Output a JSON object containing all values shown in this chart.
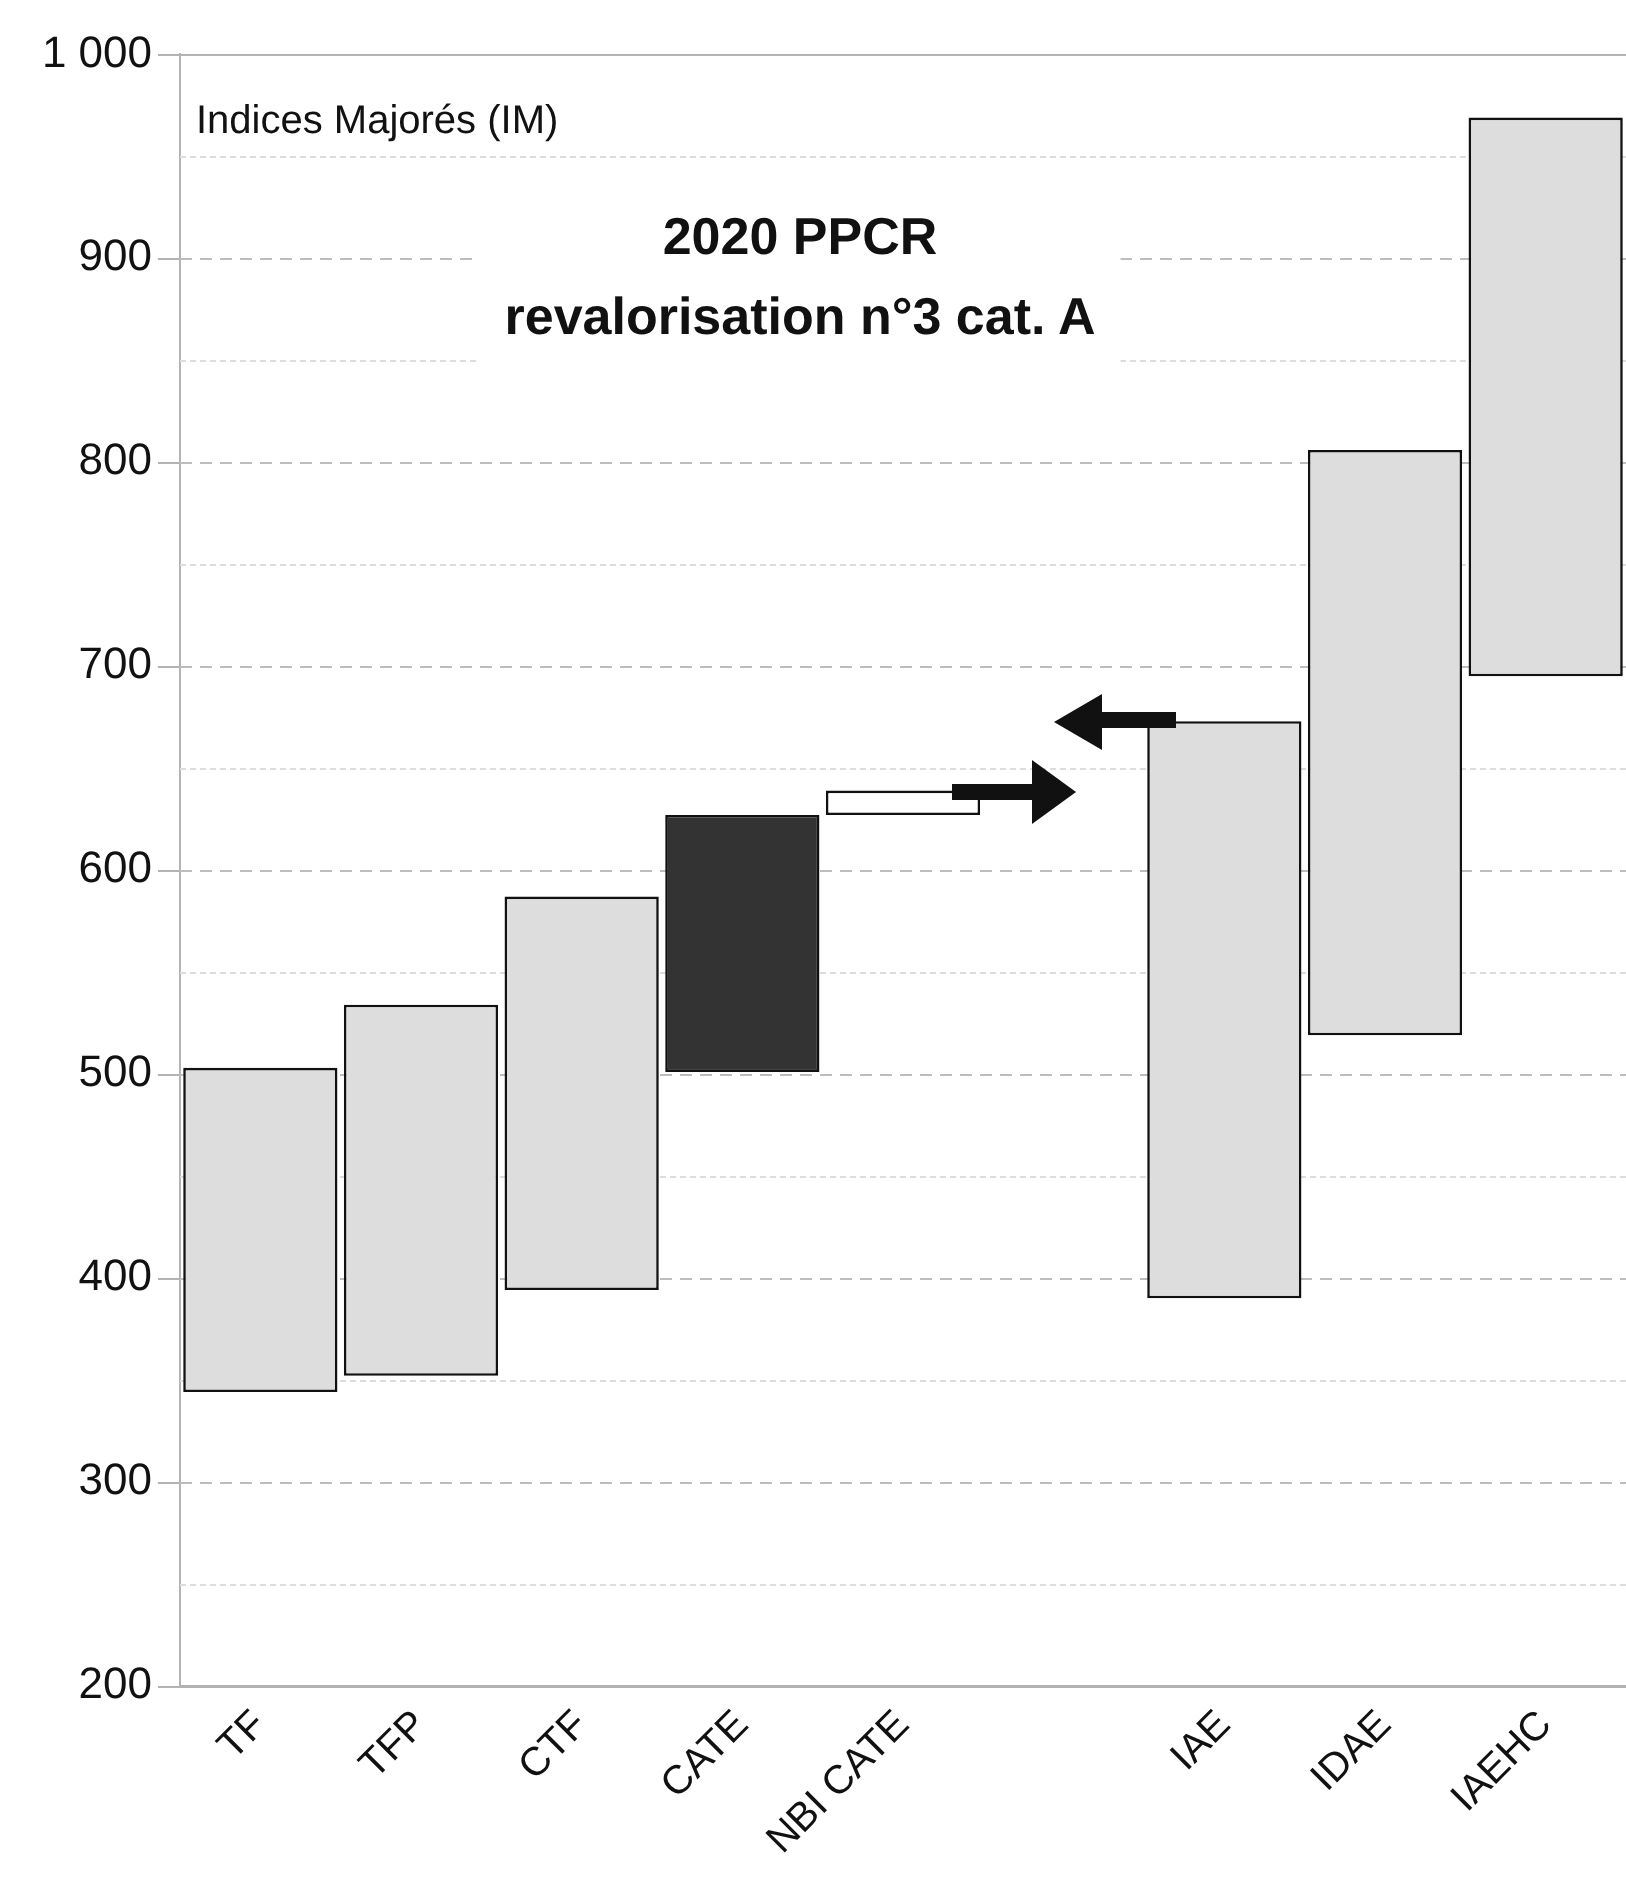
{
  "chart_data": {
    "type": "bar",
    "title": "2020 PPCR\nrevalorisation n°3 cat. A",
    "ylabel": "Indices Majorés (IM)",
    "categories": [
      "TF",
      "TFP",
      "CTF",
      "CATE",
      "NBI CATE",
      null,
      "IAE",
      "IDAE",
      "IAEHC"
    ],
    "base": [
      344,
      352,
      394,
      501,
      627,
      null,
      390,
      519,
      695
    ],
    "values": [
      159,
      182,
      193,
      126,
      12,
      null,
      283,
      287,
      274
    ],
    "colors": [
      "#dddddd",
      "#dddddd",
      "#dddddd",
      "#333333",
      "#ffffff",
      null,
      "#dddddd",
      "#dddddd",
      "#dddddd"
    ],
    "ylim": [
      200,
      1000
    ],
    "yticks": [
      200,
      {
        "value": 250,
        "label": null
      },
      300,
      {
        "value": 350,
        "label": null
      },
      400,
      {
        "value": 450,
        "label": null
      },
      500,
      {
        "value": 550,
        "label": null
      },
      600,
      {
        "value": 650,
        "label": null
      },
      700,
      {
        "value": 750,
        "label": null
      },
      800,
      {
        "value": 850,
        "label": null
      },
      900,
      {
        "value": 950,
        "label": null
      },
      {
        "value": 1000,
        "label": "1 000"
      }
    ],
    "grid": "y"
  }
}
